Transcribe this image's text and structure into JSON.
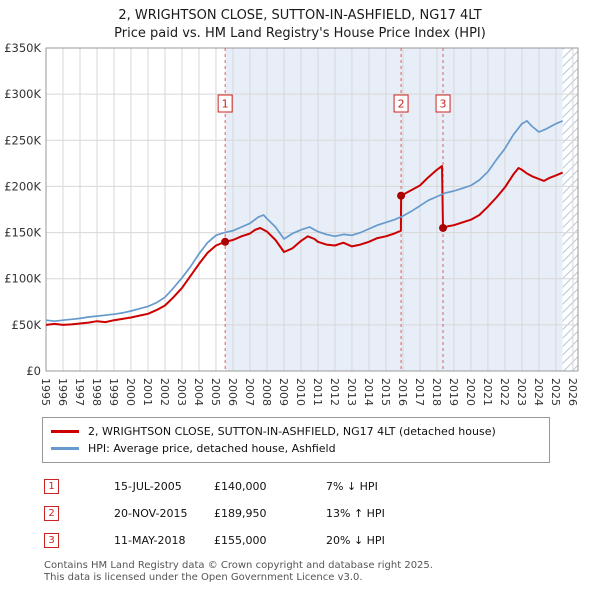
{
  "chart_data": {
    "type": "line",
    "title": "2, WRIGHTSON CLOSE, SUTTON-IN-ASHFIELD, NG17 4LT",
    "subtitle": "Price paid vs. HM Land Registry's House Price Index (HPI)",
    "x_domain": [
      1995,
      2026.3
    ],
    "y_domain": [
      0,
      350000
    ],
    "x_ticks": [
      1995,
      1996,
      1997,
      1998,
      1999,
      2000,
      2001,
      2002,
      2003,
      2004,
      2005,
      2006,
      2007,
      2008,
      2009,
      2010,
      2011,
      2012,
      2013,
      2014,
      2015,
      2016,
      2017,
      2018,
      2019,
      2020,
      2021,
      2022,
      2023,
      2024,
      2025,
      2026
    ],
    "y_ticks": [
      0,
      50000,
      100000,
      150000,
      200000,
      250000,
      300000,
      350000
    ],
    "y_tick_labels": [
      "£0",
      "£50K",
      "£100K",
      "£150K",
      "£200K",
      "£250K",
      "£300K",
      "£350K"
    ],
    "grid": true,
    "legend_position": "bottom",
    "shaded_region": [
      2005.54,
      2025.4
    ],
    "hatched_region": [
      2025.4,
      2026.3
    ],
    "colors": {
      "shade": "#e8eef8",
      "hatch_line": "#b9c6da",
      "grid": "#d7d7d7",
      "dashed_marker": "#e06060",
      "marker_dot": "#aa0000",
      "badge": "#cc2222"
    },
    "series": [
      {
        "name": "2, WRIGHTSON CLOSE, SUTTON-IN-ASHFIELD, NG17 4LT (detached house)",
        "color": "#cc0000",
        "width": 2,
        "points": [
          [
            1995.0,
            50000
          ],
          [
            1995.5,
            51000
          ],
          [
            1996.0,
            50000
          ],
          [
            1996.5,
            50500
          ],
          [
            1997.0,
            51500
          ],
          [
            1997.5,
            52500
          ],
          [
            1998.0,
            54000
          ],
          [
            1998.5,
            53000
          ],
          [
            1999.0,
            55000
          ],
          [
            1999.5,
            56500
          ],
          [
            2000.0,
            58000
          ],
          [
            2000.5,
            60000
          ],
          [
            2001.0,
            62000
          ],
          [
            2001.5,
            66000
          ],
          [
            2002.0,
            71000
          ],
          [
            2002.5,
            80000
          ],
          [
            2003.0,
            90000
          ],
          [
            2003.5,
            103000
          ],
          [
            2004.0,
            116000
          ],
          [
            2004.5,
            128000
          ],
          [
            2005.0,
            136000
          ],
          [
            2005.54,
            140000
          ],
          [
            2006.0,
            142000
          ],
          [
            2006.5,
            146000
          ],
          [
            2007.0,
            149000
          ],
          [
            2007.3,
            153000
          ],
          [
            2007.6,
            155000
          ],
          [
            2008.0,
            151000
          ],
          [
            2008.5,
            142000
          ],
          [
            2009.0,
            129000
          ],
          [
            2009.5,
            133000
          ],
          [
            2010.0,
            141000
          ],
          [
            2010.4,
            146000
          ],
          [
            2010.8,
            143000
          ],
          [
            2011.0,
            140000
          ],
          [
            2011.5,
            137000
          ],
          [
            2012.0,
            136000
          ],
          [
            2012.5,
            139000
          ],
          [
            2013.0,
            135000
          ],
          [
            2013.5,
            137000
          ],
          [
            2014.0,
            140000
          ],
          [
            2014.5,
            144000
          ],
          [
            2015.0,
            146000
          ],
          [
            2015.5,
            149000
          ],
          [
            2015.88,
            152000
          ],
          [
            2015.89,
            189950
          ],
          [
            2016.2,
            193000
          ],
          [
            2016.5,
            196000
          ],
          [
            2017.0,
            201000
          ],
          [
            2017.5,
            210000
          ],
          [
            2018.0,
            218000
          ],
          [
            2018.3,
            222000
          ],
          [
            2018.36,
            155000
          ],
          [
            2018.7,
            157000
          ],
          [
            2019.0,
            158000
          ],
          [
            2019.5,
            161000
          ],
          [
            2020.0,
            164000
          ],
          [
            2020.5,
            169000
          ],
          [
            2021.0,
            178000
          ],
          [
            2021.5,
            188000
          ],
          [
            2022.0,
            199000
          ],
          [
            2022.5,
            213000
          ],
          [
            2022.8,
            220000
          ],
          [
            2023.0,
            218000
          ],
          [
            2023.3,
            214000
          ],
          [
            2023.6,
            211000
          ],
          [
            2024.0,
            208000
          ],
          [
            2024.3,
            206000
          ],
          [
            2024.6,
            209000
          ],
          [
            2025.0,
            212000
          ],
          [
            2025.4,
            215000
          ]
        ]
      },
      {
        "name": "HPI: Average price, detached house, Ashfield",
        "color": "#6699cc",
        "width": 1.7,
        "points": [
          [
            1995.0,
            55000
          ],
          [
            1995.5,
            54000
          ],
          [
            1996.0,
            55000
          ],
          [
            1996.5,
            56000
          ],
          [
            1997.0,
            57000
          ],
          [
            1997.5,
            58500
          ],
          [
            1998.0,
            59500
          ],
          [
            1998.5,
            60500
          ],
          [
            1999.0,
            61500
          ],
          [
            1999.5,
            63000
          ],
          [
            2000.0,
            65000
          ],
          [
            2000.5,
            67500
          ],
          [
            2001.0,
            70000
          ],
          [
            2001.5,
            74000
          ],
          [
            2002.0,
            80000
          ],
          [
            2002.5,
            90000
          ],
          [
            2003.0,
            101000
          ],
          [
            2003.5,
            113000
          ],
          [
            2004.0,
            127000
          ],
          [
            2004.5,
            139000
          ],
          [
            2005.0,
            147000
          ],
          [
            2005.5,
            150000
          ],
          [
            2006.0,
            152000
          ],
          [
            2006.5,
            156000
          ],
          [
            2007.0,
            160000
          ],
          [
            2007.5,
            167000
          ],
          [
            2007.8,
            169000
          ],
          [
            2008.0,
            165000
          ],
          [
            2008.5,
            156000
          ],
          [
            2009.0,
            143000
          ],
          [
            2009.5,
            149000
          ],
          [
            2010.0,
            153000
          ],
          [
            2010.5,
            156000
          ],
          [
            2011.0,
            151000
          ],
          [
            2011.5,
            148000
          ],
          [
            2012.0,
            146000
          ],
          [
            2012.5,
            148000
          ],
          [
            2013.0,
            147000
          ],
          [
            2013.5,
            150000
          ],
          [
            2014.0,
            154000
          ],
          [
            2014.5,
            158000
          ],
          [
            2015.0,
            161000
          ],
          [
            2015.5,
            164000
          ],
          [
            2016.0,
            168000
          ],
          [
            2016.5,
            173000
          ],
          [
            2017.0,
            179000
          ],
          [
            2017.5,
            185000
          ],
          [
            2018.0,
            189000
          ],
          [
            2018.5,
            193000
          ],
          [
            2019.0,
            195000
          ],
          [
            2019.5,
            198000
          ],
          [
            2020.0,
            201000
          ],
          [
            2020.5,
            207000
          ],
          [
            2021.0,
            216000
          ],
          [
            2021.5,
            229000
          ],
          [
            2022.0,
            241000
          ],
          [
            2022.5,
            256000
          ],
          [
            2023.0,
            268000
          ],
          [
            2023.3,
            271000
          ],
          [
            2023.6,
            265000
          ],
          [
            2024.0,
            259000
          ],
          [
            2024.4,
            262000
          ],
          [
            2024.8,
            266000
          ],
          [
            2025.0,
            268000
          ],
          [
            2025.4,
            271000
          ]
        ]
      }
    ],
    "markers": [
      {
        "x": 2005.54,
        "y": 140000,
        "label": "1"
      },
      {
        "x": 2015.89,
        "y": 189950,
        "label": "2"
      },
      {
        "x": 2018.36,
        "y": 155000,
        "label": "3"
      }
    ]
  },
  "transactions": [
    {
      "num": "1",
      "date": "15-JUL-2005",
      "price": "£140,000",
      "delta": "7% ↓ HPI"
    },
    {
      "num": "2",
      "date": "20-NOV-2015",
      "price": "£189,950",
      "delta": "13% ↑ HPI"
    },
    {
      "num": "3",
      "date": "11-MAY-2018",
      "price": "£155,000",
      "delta": "20% ↓ HPI"
    }
  ],
  "footer": {
    "line1": "Contains HM Land Registry data © Crown copyright and database right 2025.",
    "line2": "This data is licensed under the Open Government Licence v3.0."
  }
}
